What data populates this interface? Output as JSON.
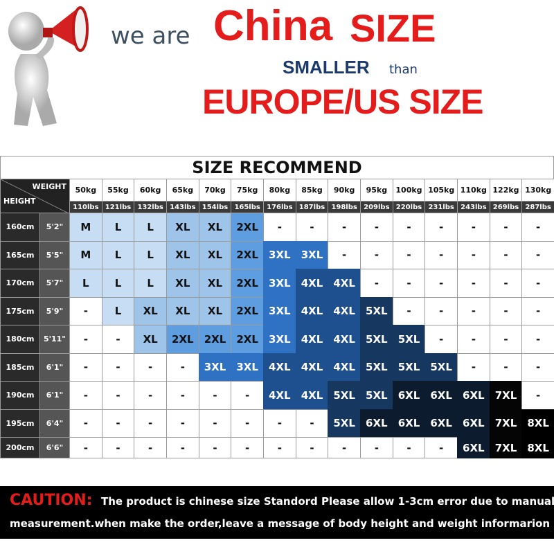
{
  "header": {
    "lead": "we are",
    "china": "China",
    "size": "SIZE",
    "smaller": "SMALLER",
    "than": "than",
    "europe": "EUROPE/US SIZE"
  },
  "table": {
    "title": "SIZE RECOMMEND",
    "weight_label": "WEIGHT",
    "height_label": "HEIGHT",
    "weights_kg": [
      "50kg",
      "55kg",
      "60kg",
      "65kg",
      "70kg",
      "75kg",
      "80kg",
      "85kg",
      "90kg",
      "95kg",
      "100kg",
      "105kg",
      "110kg",
      "122kg",
      "130kg"
    ],
    "weights_lbs": [
      "110lbs",
      "121lbs",
      "132lbs",
      "143lbs",
      "154lbs",
      "165lbs",
      "176lbs",
      "187lbs",
      "198lbs",
      "209lbs",
      "220lbs",
      "231lbs",
      "243lbs",
      "269lbs",
      "287lbs"
    ],
    "rows": [
      {
        "cm": "160cm",
        "ft": "5'2\"",
        "sizes": [
          "M",
          "L",
          "L",
          "XL",
          "XL",
          "2XL",
          "-",
          "-",
          "-",
          "-",
          "-",
          "-",
          "-",
          "-",
          "-"
        ]
      },
      {
        "cm": "165cm",
        "ft": "5'5\"",
        "sizes": [
          "M",
          "L",
          "L",
          "XL",
          "XL",
          "2XL",
          "3XL",
          "3XL",
          "-",
          "-",
          "-",
          "-",
          "-",
          "-",
          "-"
        ]
      },
      {
        "cm": "170cm",
        "ft": "5'7\"",
        "sizes": [
          "L",
          "L",
          "L",
          "XL",
          "XL",
          "2XL",
          "3XL",
          "4XL",
          "4XL",
          "-",
          "-",
          "-",
          "-",
          "-",
          "-"
        ]
      },
      {
        "cm": "175cm",
        "ft": "5'9\"",
        "sizes": [
          "-",
          "L",
          "XL",
          "XL",
          "XL",
          "2XL",
          "3XL",
          "4XL",
          "4XL",
          "5XL",
          "-",
          "-",
          "-",
          "-",
          "-"
        ]
      },
      {
        "cm": "180cm",
        "ft": "5'11\"",
        "sizes": [
          "-",
          "-",
          "XL",
          "2XL",
          "2XL",
          "2XL",
          "3XL",
          "4XL",
          "4XL",
          "5XL",
          "5XL",
          "-",
          "-",
          "-",
          "-"
        ]
      },
      {
        "cm": "185cm",
        "ft": "6'1\"",
        "sizes": [
          "-",
          "-",
          "-",
          "-",
          "3XL",
          "3XL",
          "4XL",
          "4XL",
          "4XL",
          "5XL",
          "5XL",
          "5XL",
          "-",
          "-",
          "-"
        ]
      },
      {
        "cm": "190cm",
        "ft": "6'1\"",
        "sizes": [
          "-",
          "-",
          "-",
          "-",
          "-",
          "-",
          "4XL",
          "4XL",
          "5XL",
          "5XL",
          "6XL",
          "6XL",
          "6XL",
          "7XL",
          "-"
        ]
      },
      {
        "cm": "195cm",
        "ft": "6'4\"",
        "sizes": [
          "-",
          "-",
          "-",
          "-",
          "-",
          "-",
          "-",
          "-",
          "5XL",
          "6XL",
          "6XL",
          "6XL",
          "6XL",
          "7XL",
          "8XL"
        ]
      },
      {
        "cm": "200cm",
        "ft": "6'6\"",
        "sizes": [
          "-",
          "-",
          "-",
          "-",
          "-",
          "-",
          "-",
          "-",
          "-",
          "-",
          "-",
          "-",
          "6XL",
          "7XL",
          "8XL"
        ]
      }
    ],
    "size_colors": {
      "M": "#c7ddf3",
      "L": "#c7ddf3",
      "XL": "#9ec4ea",
      "2XL": "#5d9de0",
      "3XL": "#2f72c4",
      "4XL": "#1e4f8f",
      "5XL": "#163760",
      "6XL": "#0d1b2f",
      "7XL": "#050505",
      "8XL": "#000000",
      "-": "#ffffff"
    }
  },
  "caution": {
    "label": "CAUTION:",
    "line1": "The product is chinese size Standord Please allow 1-3cm error due to manual",
    "line2": "measurement.when make the order,leave a message of body height and weight informarion"
  }
}
